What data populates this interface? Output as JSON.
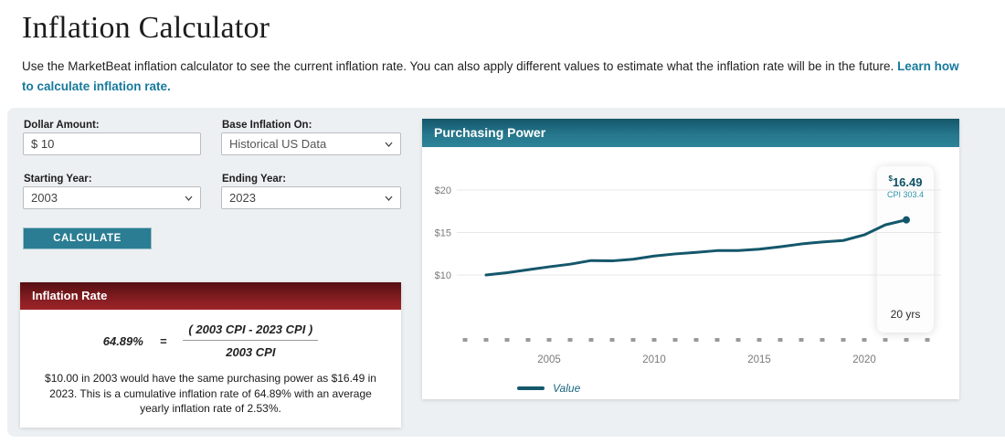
{
  "page": {
    "title": "Inflation Calculator",
    "description": "Use the MarketBeat inflation calculator to see the current inflation rate. You can also apply different values to estimate what the inflation rate will be in the future. ",
    "description_link": "Learn how to calculate inflation rate."
  },
  "form": {
    "dollar_amount": {
      "label": "Dollar Amount:",
      "value": "$ 10"
    },
    "base_inflation": {
      "label": "Base Inflation On:",
      "value": "Historical US Data"
    },
    "starting_year": {
      "label": "Starting Year:",
      "value": "2003"
    },
    "ending_year": {
      "label": "Ending Year:",
      "value": "2023"
    },
    "calculate_label": "CALCULATE"
  },
  "inflation_rate": {
    "header": "Inflation Rate",
    "formula": {
      "result": "64.89%",
      "equals": "=",
      "numerator": "( 2003 CPI - 2023 CPI )",
      "denominator": "2003 CPI"
    },
    "summary": "$10.00 in 2003 would have the same purchasing power as $16.49 in 2023. This is a cumulative inflation rate of 64.89% with an average yearly inflation rate of 2.53%."
  },
  "chart": {
    "header": "Purchasing Power",
    "tooltip": {
      "currency": "$",
      "value": "16.49",
      "cpi": "CPI 303.4",
      "span": "20 yrs"
    },
    "legend_label": "Value"
  },
  "chart_data": {
    "type": "line",
    "title": "Purchasing Power",
    "x": [
      2003,
      2004,
      2005,
      2006,
      2007,
      2008,
      2009,
      2010,
      2011,
      2012,
      2013,
      2014,
      2015,
      2016,
      2017,
      2018,
      2019,
      2020,
      2021,
      2022,
      2023
    ],
    "series": [
      {
        "name": "Value",
        "values": [
          10.0,
          10.27,
          10.62,
          10.96,
          11.27,
          11.7,
          11.66,
          11.85,
          12.23,
          12.48,
          12.66,
          12.87,
          12.88,
          13.04,
          13.32,
          13.65,
          13.89,
          14.06,
          14.72,
          15.9,
          16.49
        ]
      }
    ],
    "yticks": [
      {
        "value": 10,
        "label": "$10"
      },
      {
        "value": 15,
        "label": "$15"
      },
      {
        "value": 20,
        "label": "$20"
      }
    ],
    "xticks": [
      {
        "value": 2005,
        "label": "2005"
      },
      {
        "value": 2010,
        "label": "2010"
      },
      {
        "value": 2015,
        "label": "2015"
      },
      {
        "value": 2020,
        "label": "2020"
      }
    ],
    "ylim": [
      10,
      20
    ],
    "grid": true,
    "legend_position": "bottom",
    "annotation": {
      "end_value_label": "$16.49",
      "end_cpi_label": "CPI 303.4",
      "span_label": "20 yrs"
    }
  },
  "colors": {
    "accent_teal": "#2a7d92",
    "header_red": "#8c1f24",
    "line": "#14576b",
    "link": "#17799c",
    "grid": "#e7e7e7",
    "tick": "#999999",
    "axis_text": "#7a7a7a",
    "panel_bg": "#edf0f2"
  }
}
